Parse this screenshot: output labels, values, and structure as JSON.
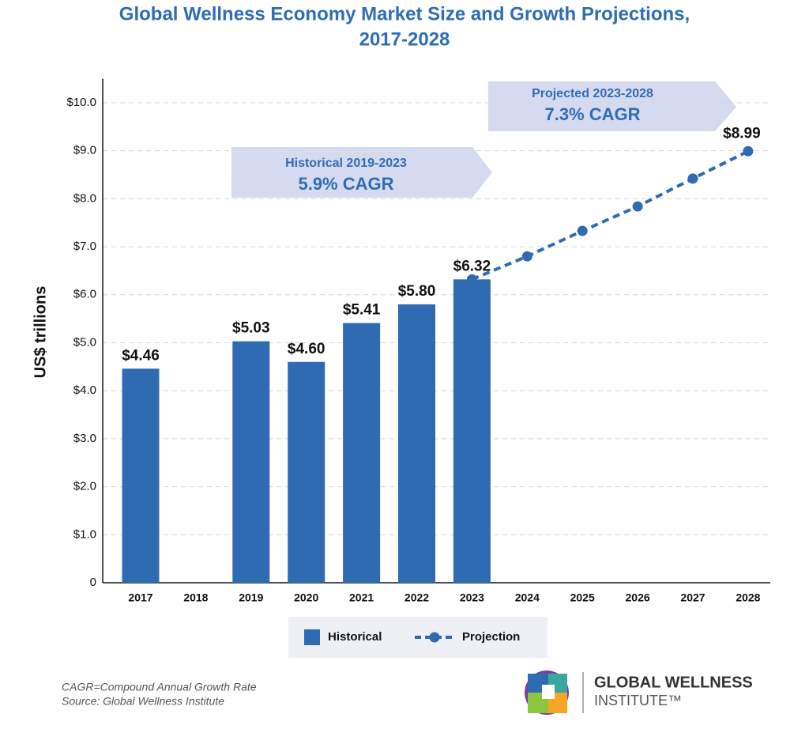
{
  "chart_data": {
    "type": "bar",
    "title": [
      "Global Wellness Economy Market Size and Growth Projections,",
      "2017-2028"
    ],
    "y_label": "US$ trillions",
    "categories": [
      "2017",
      "2018",
      "2019",
      "2020",
      "2021",
      "2022",
      "2023",
      "2024",
      "2025",
      "2026",
      "2027",
      "2028"
    ],
    "series": [
      {
        "name": "Historical",
        "type": "bar",
        "color": "#2e6bb3",
        "values": [
          4.46,
          null,
          5.03,
          4.6,
          5.41,
          5.8,
          6.32,
          null,
          null,
          null,
          null,
          null
        ],
        "value_labels": [
          "$4.46",
          null,
          "$5.03",
          "$4.60",
          "$5.41",
          "$5.80",
          "$6.32",
          null,
          null,
          null,
          null,
          null
        ]
      },
      {
        "name": "Projection",
        "type": "line",
        "color": "#2e6bb3",
        "values": [
          null,
          null,
          null,
          null,
          null,
          null,
          6.32,
          6.8,
          7.33,
          7.84,
          8.42,
          8.99
        ],
        "value_labels": [
          null,
          null,
          null,
          null,
          null,
          null,
          null,
          null,
          null,
          null,
          null,
          "$8.99"
        ]
      }
    ],
    "ylim": [
      0,
      10.5
    ],
    "yticks": [
      0,
      {
        "value": 1,
        "label": "$1.0"
      },
      {
        "value": 2,
        "label": "$2.0"
      },
      {
        "value": 3,
        "label": "$3.0"
      },
      {
        "value": 4,
        "label": "$4.0"
      },
      {
        "value": 5,
        "label": "$5.0"
      },
      {
        "value": 6,
        "label": "$6.0"
      },
      {
        "value": 7,
        "label": "$7.0"
      },
      {
        "value": 8,
        "label": "$8.0"
      },
      {
        "value": 9,
        "label": "$9.0"
      },
      {
        "value": 10,
        "label": "$10.0"
      }
    ],
    "grid": true,
    "annotations": [
      {
        "lines": [
          "Historical 2019-2023",
          "5.9% CAGR"
        ]
      },
      {
        "lines": [
          "Projected 2023-2028",
          "7.3% CAGR"
        ]
      }
    ],
    "footnotes": [
      "CAGR=Compound Annual Growth Rate",
      "Source: Global Wellness Institute"
    ],
    "logo": [
      "GLOBAL WELLNESS",
      "INSTITUTE™"
    ]
  }
}
